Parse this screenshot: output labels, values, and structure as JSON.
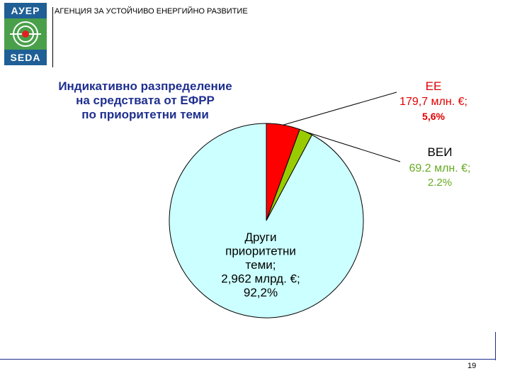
{
  "header": {
    "logo_top": "АУЕР",
    "logo_bottom": "SEDA",
    "title": "АГЕНЦИЯ ЗА УСТОЙЧИВО ЕНЕРГИЙНО РАЗВИТИЕ"
  },
  "chart_title_lines": [
    "Индикативно разпределение",
    "на средствата от ЕФРР",
    "по приоритетни теми"
  ],
  "chart_data": {
    "type": "pie",
    "title": "Индикативно разпределение на средствата от ЕФРР по приоритетни теми",
    "slices": [
      {
        "label": "ЕЕ",
        "value": 5.6,
        "amount": "179,7 млн. €;",
        "percent": "5,6%",
        "color": "#ff0000",
        "label_color": "#e00000"
      },
      {
        "label": "ВЕИ",
        "value": 2.2,
        "amount": "69.2 млн. €;",
        "percent": "2.2%",
        "color": "#99cc00",
        "label_color": "#66aa22"
      },
      {
        "label": "Други приоритетни теми;",
        "value": 92.2,
        "amount": "2,962 млрд. €;",
        "percent": "92,2%",
        "color": "#ccffff",
        "label_color": "#000000"
      }
    ],
    "other_label_lines": [
      "Други",
      "приоритетни",
      "теми;",
      "2,962 млрд. €;",
      "92,2%"
    ]
  },
  "footer": {
    "page_number": "19"
  }
}
